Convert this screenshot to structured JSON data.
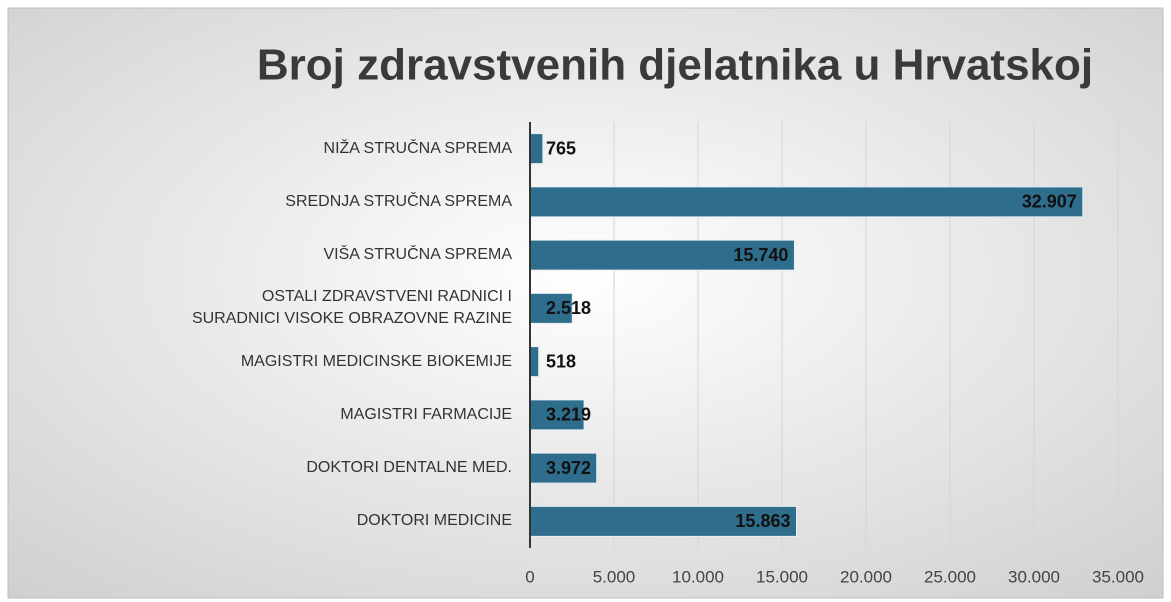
{
  "chart_data": {
    "type": "bar",
    "orientation": "horizontal",
    "title": "Broj zdravstvenih djelatnika u Hrvatskoj",
    "categories": [
      "NIŽA STRUČNA SPREMA",
      "SREDNJA STRUČNA SPREMA",
      "VIŠA STRUČNA SPREMA",
      "OSTALI ZDRAVSTVENI RADNICI I SURADNICI VISOKE OBRAZOVNE RAZINE",
      "MAGISTRI MEDICINSKE BIOKEMIJE",
      "MAGISTRI FARMACIJE",
      "DOKTORI DENTALNE MED.",
      "DOKTORI MEDICINE"
    ],
    "values": [
      765,
      32907,
      15740,
      2518,
      518,
      3219,
      3972,
      15863
    ],
    "value_labels": [
      "765",
      "32.907",
      "15.740",
      "2.518",
      "518",
      "3.219",
      "3.972",
      "15.863"
    ],
    "color": "#2f6d8c",
    "xlim": [
      0,
      35000
    ],
    "xticks": [
      0,
      {
        "value": 5000,
        "label": "5.000"
      },
      {
        "value": 10000,
        "label": "10.000"
      },
      {
        "value": 15000,
        "label": "15.000"
      },
      {
        "value": 20000,
        "label": "20.000"
      },
      {
        "value": 25000,
        "label": "25.000"
      },
      {
        "value": 30000,
        "label": "30.000"
      },
      {
        "value": 35000,
        "label": "35.000"
      }
    ],
    "grid": true
  }
}
